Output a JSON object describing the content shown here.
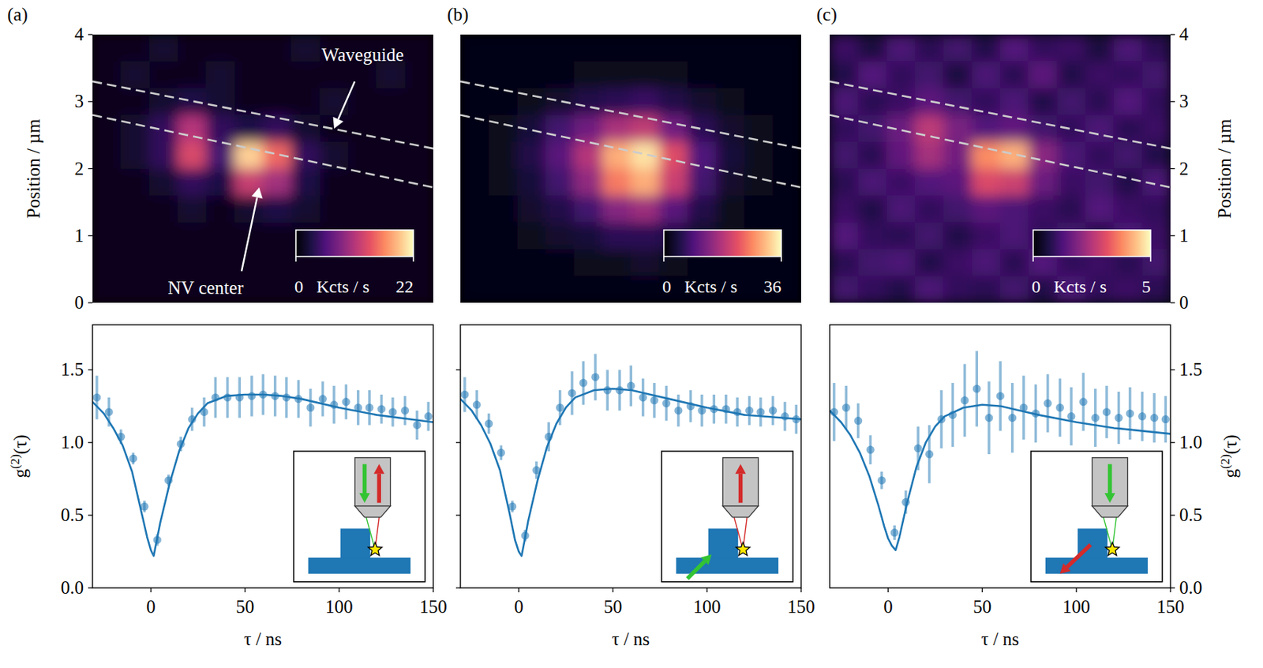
{
  "chart_data": [
    {
      "type": "heatmap",
      "panel_label": "(a)",
      "xlim": [
        0,
        5.08
      ],
      "ylim": [
        0,
        4
      ],
      "yticks": [
        0,
        1,
        2,
        3,
        4
      ],
      "ylabel": "Position / µm",
      "tick_labels": "y",
      "cells": [
        [
          1,
          1,
          2,
          1,
          1,
          1,
          1,
          2,
          1,
          1,
          1,
          1
        ],
        [
          1,
          2,
          1,
          1,
          2,
          1,
          1,
          1,
          1,
          1,
          2,
          1
        ],
        [
          1,
          1,
          2,
          3,
          2,
          1,
          1,
          1,
          2,
          1,
          1,
          1
        ],
        [
          1,
          2,
          4,
          11,
          4,
          3,
          4,
          2,
          1,
          1,
          1,
          1
        ],
        [
          1,
          2,
          4,
          13,
          5,
          20,
          15,
          4,
          2,
          1,
          1,
          1
        ],
        [
          1,
          1,
          2,
          4,
          3,
          12,
          10,
          3,
          1,
          1,
          1,
          1
        ],
        [
          1,
          1,
          1,
          2,
          1,
          2,
          3,
          2,
          1,
          1,
          1,
          1
        ],
        [
          1,
          1,
          1,
          1,
          1,
          1,
          1,
          1,
          1,
          1,
          1,
          1
        ],
        [
          1,
          1,
          1,
          1,
          1,
          1,
          1,
          1,
          1,
          1,
          1,
          1
        ],
        [
          1,
          1,
          1,
          1,
          1,
          1,
          1,
          1,
          1,
          1,
          1,
          1
        ]
      ],
      "colorbar": {
        "range": [
          0,
          22
        ],
        "ticks": [
          0,
          22
        ],
        "label": "Kcts / s"
      },
      "lines": [
        {
          "x": [
            0,
            5.08
          ],
          "y": [
            3.3,
            2.3
          ],
          "color": "#cccccc",
          "line_style": "dashed"
        },
        {
          "x": [
            0,
            5.08
          ],
          "y": [
            2.8,
            1.72
          ],
          "color": "#cccccc",
          "line_style": "dashed"
        }
      ],
      "annotations": [
        {
          "text": "Waveguide"
        },
        {
          "text": "NV center"
        }
      ]
    },
    {
      "type": "scatter",
      "xlim": [
        -31,
        150
      ],
      "ylim": [
        0,
        1.81
      ],
      "xticks": [
        0,
        50,
        100,
        150
      ],
      "yticks": [
        {
          "value": 0,
          "label": "0.0"
        },
        {
          "value": 0.5,
          "label": "0.5"
        },
        {
          "value": 1,
          "label": "1.0"
        },
        {
          "value": 1.5,
          "label": "1.5"
        }
      ],
      "xlabel": "τ / ns",
      "ylabel": "g(2)(τ)",
      "tick_labels": true,
      "series": [
        {
          "type": "scatter",
          "color": "#1f77b4",
          "marker": "circle",
          "x": [
            -28.7,
            -22.3,
            -15.9,
            -9.4,
            -3.4,
            3.4,
            9.4,
            15.9,
            21.9,
            28.3,
            34.3,
            40.7,
            47.1,
            53.6,
            59.6,
            66.0,
            72.0,
            78.4,
            84.8,
            91.3,
            97.3,
            103.7,
            110.1,
            116.1,
            122.5,
            128.5,
            135.0,
            141.4,
            147.4
          ],
          "values": [
            1.31,
            1.21,
            1.04,
            0.89,
            0.56,
            0.33,
            0.74,
            0.99,
            1.16,
            1.21,
            1.31,
            1.31,
            1.31,
            1.32,
            1.33,
            1.32,
            1.31,
            1.3,
            1.24,
            1.3,
            1.26,
            1.28,
            1.24,
            1.24,
            1.23,
            1.21,
            1.22,
            1.12,
            1.18
          ],
          "errors": [
            0.15,
            0.1,
            0.05,
            0.04,
            0.04,
            0.04,
            0.04,
            0.05,
            0.08,
            0.1,
            0.14,
            0.14,
            0.14,
            0.14,
            0.14,
            0.14,
            0.14,
            0.13,
            0.13,
            0.12,
            0.13,
            0.12,
            0.12,
            0.12,
            0.1,
            0.1,
            0.1,
            0.1,
            0.1
          ]
        },
        {
          "type": "line",
          "color": "#1f77b4",
          "line_style": "solid",
          "x": [
            -31,
            -25,
            -20,
            -15,
            -10,
            -5,
            -2,
            0,
            1.5,
            3,
            5,
            10,
            15,
            20,
            25,
            30,
            40,
            50,
            60,
            70,
            80,
            100,
            120,
            150
          ],
          "values": [
            1.28,
            1.2,
            1.1,
            0.98,
            0.8,
            0.52,
            0.35,
            0.26,
            0.22,
            0.32,
            0.45,
            0.72,
            0.94,
            1.1,
            1.2,
            1.27,
            1.32,
            1.33,
            1.33,
            1.32,
            1.3,
            1.24,
            1.19,
            1.14
          ]
        }
      ]
    },
    {
      "type": "heatmap",
      "panel_label": "(b)",
      "xlim": [
        0,
        5.08
      ],
      "ylim": [
        0,
        4
      ],
      "tick_labels": false,
      "cells": [
        [
          1,
          1,
          1,
          1,
          1,
          1,
          1,
          1,
          1,
          1,
          1,
          1
        ],
        [
          1,
          1,
          1,
          1,
          2,
          2,
          2,
          2,
          1,
          1,
          1,
          1
        ],
        [
          1,
          1,
          2,
          3,
          5,
          6,
          7,
          5,
          3,
          2,
          1,
          1
        ],
        [
          1,
          2,
          4,
          8,
          12,
          17,
          19,
          12,
          6,
          3,
          2,
          1
        ],
        [
          1,
          2,
          5,
          10,
          18,
          30,
          34,
          22,
          9,
          4,
          2,
          1
        ],
        [
          1,
          2,
          4,
          8,
          15,
          26,
          30,
          20,
          8,
          3,
          2,
          1
        ],
        [
          1,
          1,
          3,
          5,
          8,
          14,
          16,
          10,
          5,
          2,
          1,
          1
        ],
        [
          1,
          1,
          2,
          3,
          4,
          6,
          6,
          5,
          3,
          2,
          1,
          1
        ],
        [
          1,
          1,
          1,
          1,
          2,
          2,
          3,
          2,
          1,
          1,
          1,
          1
        ],
        [
          1,
          1,
          1,
          1,
          1,
          1,
          1,
          1,
          1,
          1,
          1,
          1
        ]
      ],
      "colorbar": {
        "range": [
          0,
          36
        ],
        "ticks": [
          0,
          36
        ],
        "label": "Kcts / s"
      },
      "lines": [
        {
          "x": [
            0,
            5.08
          ],
          "y": [
            3.3,
            2.3
          ],
          "color": "#cccccc",
          "line_style": "dashed"
        },
        {
          "x": [
            0,
            5.08
          ],
          "y": [
            2.8,
            1.72
          ],
          "color": "#cccccc",
          "line_style": "dashed"
        }
      ]
    },
    {
      "type": "scatter",
      "xlim": [
        -31,
        150
      ],
      "ylim": [
        0,
        1.81
      ],
      "xticks": [
        0,
        50,
        100,
        150
      ],
      "yticks": [
        0,
        0.5,
        1,
        1.5
      ],
      "xlabel": "τ / ns",
      "tick_labels": "x",
      "series": [
        {
          "type": "scatter",
          "color": "#1f77b4",
          "marker": "circle",
          "x": [
            -28.7,
            -22.3,
            -15.9,
            -9.4,
            -3.4,
            3.4,
            9.4,
            15.9,
            21.9,
            28.3,
            34.3,
            40.7,
            47.1,
            53.6,
            59.6,
            66.0,
            72.0,
            78.4,
            84.8,
            91.3,
            97.3,
            103.7,
            110.1,
            116.1,
            122.5,
            128.5,
            135.0,
            141.4,
            147.4
          ],
          "values": [
            1.33,
            1.26,
            1.13,
            0.93,
            0.56,
            0.36,
            0.81,
            1.04,
            1.24,
            1.34,
            1.41,
            1.45,
            1.36,
            1.36,
            1.39,
            1.31,
            1.29,
            1.27,
            1.22,
            1.25,
            1.22,
            1.23,
            1.23,
            1.21,
            1.22,
            1.21,
            1.22,
            1.18,
            1.16
          ],
          "errors": [
            0.12,
            0.1,
            0.07,
            0.05,
            0.04,
            0.04,
            0.06,
            0.1,
            0.12,
            0.15,
            0.15,
            0.16,
            0.14,
            0.14,
            0.14,
            0.13,
            0.12,
            0.12,
            0.11,
            0.11,
            0.11,
            0.1,
            0.1,
            0.1,
            0.1,
            0.1,
            0.1,
            0.1,
            0.1
          ]
        },
        {
          "type": "line",
          "color": "#1f77b4",
          "line_style": "solid",
          "x": [
            -31,
            -25,
            -20,
            -15,
            -10,
            -5,
            -2,
            0,
            1.5,
            3,
            5,
            10,
            15,
            20,
            25,
            30,
            40,
            50,
            60,
            70,
            80,
            100,
            120,
            150
          ],
          "values": [
            1.3,
            1.22,
            1.12,
            0.99,
            0.81,
            0.52,
            0.33,
            0.25,
            0.22,
            0.32,
            0.46,
            0.74,
            0.97,
            1.13,
            1.24,
            1.31,
            1.36,
            1.37,
            1.36,
            1.33,
            1.3,
            1.24,
            1.19,
            1.16
          ]
        }
      ]
    },
    {
      "type": "heatmap",
      "panel_label": "(c)",
      "xlim": [
        0,
        5.08
      ],
      "y2lim": [
        0,
        4
      ],
      "y2ticks": [
        0,
        1,
        2,
        3,
        4
      ],
      "y2label": "Position / µm",
      "tick_labels": "y",
      "cells": [
        [
          1.0,
          0.6,
          1.2,
          0.8,
          1.1,
          0.7,
          1.3,
          0.9,
          1.0,
          0.6,
          1.2,
          0.8
        ],
        [
          0.7,
          1.3,
          0.9,
          1.1,
          0.6,
          1.2,
          0.8,
          1.4,
          0.7,
          1.0,
          0.9,
          1.1
        ],
        [
          1.2,
          0.8,
          1.0,
          1.4,
          1.1,
          0.9,
          1.2,
          0.7,
          1.1,
          0.8,
          1.3,
          0.9
        ],
        [
          0.9,
          1.1,
          1.6,
          2.6,
          1.8,
          1.3,
          1.5,
          1.1,
          0.9,
          1.2,
          0.8,
          1.0
        ],
        [
          1.1,
          0.8,
          1.5,
          2.3,
          1.7,
          3.8,
          4.2,
          2.0,
          1.2,
          0.9,
          1.1,
          0.7
        ],
        [
          0.8,
          1.2,
          1.0,
          1.3,
          1.4,
          3.0,
          2.8,
          1.6,
          1.0,
          1.1,
          0.7,
          1.2
        ],
        [
          1.0,
          0.7,
          1.2,
          0.9,
          1.1,
          1.4,
          1.2,
          1.0,
          0.8,
          1.3,
          1.0,
          0.9
        ],
        [
          1.3,
          0.9,
          0.8,
          1.1,
          0.7,
          1.0,
          1.2,
          0.9,
          1.1,
          0.7,
          1.2,
          1.0
        ],
        [
          0.8,
          1.1,
          1.2,
          0.7,
          1.0,
          1.2,
          0.8,
          1.3,
          0.9,
          1.0,
          0.8,
          1.1
        ],
        [
          1.1,
          0.9,
          0.7,
          1.2,
          0.9,
          0.8,
          1.1,
          0.7,
          1.2,
          0.9,
          1.0,
          0.8
        ]
      ],
      "colorbar": {
        "range": [
          0,
          5
        ],
        "ticks": [
          0,
          5
        ],
        "label": "Kcts / s"
      },
      "lines": [
        {
          "x": [
            0,
            5.08
          ],
          "y": [
            3.3,
            2.3
          ],
          "color": "#cccccc",
          "line_style": "dashed"
        },
        {
          "x": [
            0,
            5.08
          ],
          "y": [
            2.8,
            1.72
          ],
          "color": "#cccccc",
          "line_style": "dashed"
        }
      ]
    },
    {
      "type": "scatter",
      "xlim": [
        -31,
        150
      ],
      "y2lim": [
        0,
        1.81
      ],
      "xticks": [
        0,
        50,
        100,
        150
      ],
      "y2ticks": [
        {
          "value": 0,
          "label": "0.0"
        },
        {
          "value": 0.5,
          "label": "0.5"
        },
        {
          "value": 1,
          "label": "1.0"
        },
        {
          "value": 1.5,
          "label": "1.5"
        }
      ],
      "xlabel": "τ / ns",
      "y2label": "g(2)(τ)",
      "tick_labels": true,
      "series": [
        {
          "type": "scatter",
          "color": "#1f77b4",
          "marker": "circle",
          "axis": "y2",
          "x": [
            -28.7,
            -22.3,
            -15.9,
            -9.4,
            -3.4,
            3.4,
            9.4,
            15.9,
            21.9,
            28.3,
            34.3,
            40.7,
            47.1,
            53.6,
            59.6,
            66.0,
            72.0,
            78.4,
            84.8,
            91.3,
            97.3,
            103.7,
            110.1,
            116.1,
            122.5,
            128.5,
            135.0,
            141.4,
            147.4
          ],
          "values": [
            1.21,
            1.24,
            1.15,
            0.95,
            0.74,
            0.38,
            0.59,
            0.96,
            0.92,
            1.16,
            1.19,
            1.29,
            1.37,
            1.17,
            1.32,
            1.17,
            1.24,
            1.2,
            1.27,
            1.24,
            1.18,
            1.28,
            1.17,
            1.21,
            1.17,
            1.2,
            1.18,
            1.17,
            1.16
          ],
          "errors": [
            0.2,
            0.15,
            0.12,
            0.1,
            0.06,
            0.05,
            0.08,
            0.15,
            0.2,
            0.2,
            0.22,
            0.25,
            0.26,
            0.25,
            0.24,
            0.24,
            0.22,
            0.2,
            0.2,
            0.2,
            0.2,
            0.2,
            0.2,
            0.18,
            0.18,
            0.18,
            0.17,
            0.17,
            0.16
          ]
        },
        {
          "type": "line",
          "color": "#1f77b4",
          "line_style": "solid",
          "axis": "y2",
          "x": [
            -31,
            -25,
            -20,
            -15,
            -10,
            -5,
            -2,
            0,
            2,
            4,
            6,
            10,
            15,
            20,
            25,
            30,
            40,
            50,
            60,
            70,
            80,
            100,
            120,
            150
          ],
          "values": [
            1.22,
            1.14,
            1.05,
            0.93,
            0.77,
            0.56,
            0.42,
            0.34,
            0.29,
            0.26,
            0.35,
            0.58,
            0.83,
            1.0,
            1.11,
            1.18,
            1.24,
            1.26,
            1.25,
            1.22,
            1.19,
            1.14,
            1.1,
            1.06
          ]
        }
      ]
    }
  ]
}
